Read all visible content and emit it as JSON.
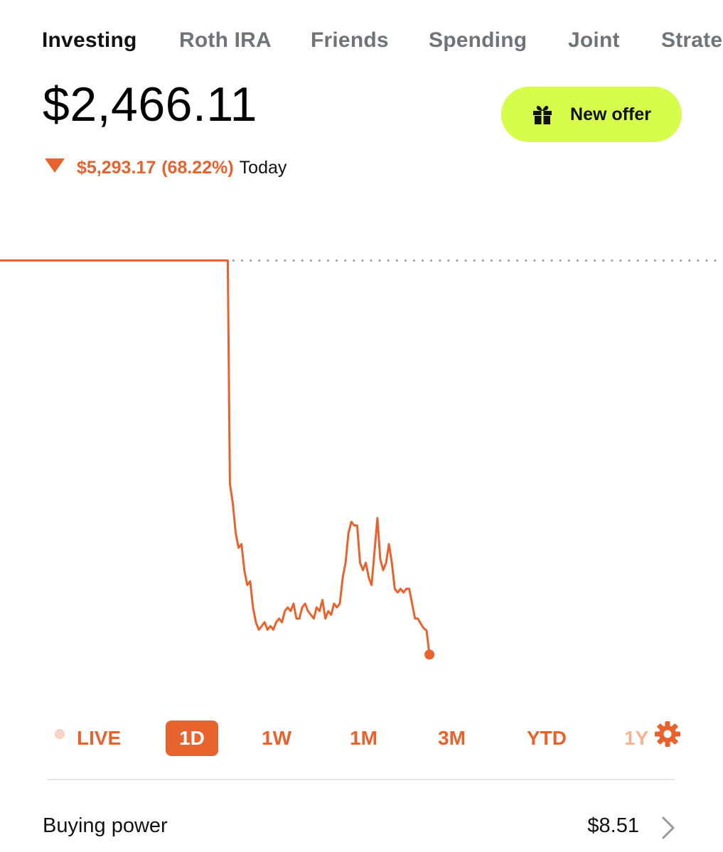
{
  "tabs": [
    {
      "label": "Investing",
      "active": true
    },
    {
      "label": "Roth IRA",
      "active": false
    },
    {
      "label": "Friends",
      "active": false
    },
    {
      "label": "Spending",
      "active": false
    },
    {
      "label": "Joint",
      "active": false
    },
    {
      "label": "Strate",
      "active": false
    }
  ],
  "portfolio": {
    "balance": "$2,466.11",
    "change_amount": "$5,293.17",
    "change_percent": "(68.22%)",
    "change_period": "Today",
    "direction_icon": "triangle-down-icon"
  },
  "offer_button": {
    "label": "New offer",
    "icon": "gift-icon"
  },
  "colors": {
    "accent": "#e8622d",
    "offer_bg": "#d6fd4c",
    "reference_dots": "#9a9a9a",
    "faded_range": "#f3b394",
    "live_dot": "#f6d3c2"
  },
  "chart_data": {
    "type": "line",
    "title": "",
    "xlabel": "",
    "ylabel": "",
    "grid": false,
    "legend": "none",
    "reference_line": 7759.28,
    "ylim": [
      2000,
      8300
    ],
    "xlim": [
      0,
      100
    ],
    "series": [
      {
        "x": [
          0,
          18,
          27,
          31.5,
          31.8,
          32.2,
          32.6,
          33.0,
          33.4,
          33.8,
          34.2,
          34.6,
          35.0,
          35.4,
          35.8,
          36.2,
          36.6,
          37.0,
          37.4,
          37.8,
          38.2,
          38.6,
          39.0,
          39.4,
          39.8,
          40.2,
          40.6,
          41.0,
          41.4,
          41.8,
          42.2,
          42.6,
          43.0,
          43.4,
          43.8,
          44.2,
          44.6,
          45.0,
          45.4,
          45.8,
          46.2,
          46.6,
          47.0,
          47.4,
          47.8,
          48.2,
          48.6,
          49.0,
          49.4,
          49.8,
          50.2,
          50.6,
          51.0,
          51.4,
          51.8,
          52.2,
          52.6,
          53.0,
          53.4,
          53.8,
          54.2,
          54.6,
          55.0,
          55.4,
          55.8,
          56.2,
          56.6,
          57.0,
          57.4,
          57.8,
          58.2,
          58.6,
          59.0,
          59.4
        ],
        "y": [
          7759.28,
          7759.28,
          7759.28,
          7759.28,
          4760,
          4500,
          4100,
          3900,
          3950,
          3600,
          3400,
          3450,
          3100,
          2900,
          2800,
          2850,
          2900,
          2800,
          2850,
          2800,
          2900,
          2950,
          2900,
          3050,
          3100,
          3050,
          3150,
          2950,
          2950,
          3100,
          3150,
          3050,
          3000,
          2950,
          3100,
          3050,
          3200,
          2950,
          3050,
          3000,
          3150,
          3100,
          3150,
          3500,
          3700,
          4100,
          4250,
          4200,
          4200,
          3700,
          3600,
          3700,
          3500,
          3400,
          3850,
          4300,
          3750,
          3600,
          3700,
          3950,
          3700,
          3350,
          3300,
          3350,
          3300,
          3350,
          3350,
          3150,
          2950,
          2950,
          2880,
          2820,
          2790,
          2466.11
        ]
      }
    ]
  },
  "time_ranges": [
    {
      "label": "LIVE",
      "active": false
    },
    {
      "label": "1D",
      "active": true
    },
    {
      "label": "1W",
      "active": false
    },
    {
      "label": "1M",
      "active": false
    },
    {
      "label": "3M",
      "active": false
    },
    {
      "label": "YTD",
      "active": false
    },
    {
      "label": "1Y",
      "active": false
    }
  ],
  "settings_icon": "gear-icon",
  "buying_power": {
    "label": "Buying power",
    "value": "$8.51",
    "icon": "chevron-right-icon"
  }
}
